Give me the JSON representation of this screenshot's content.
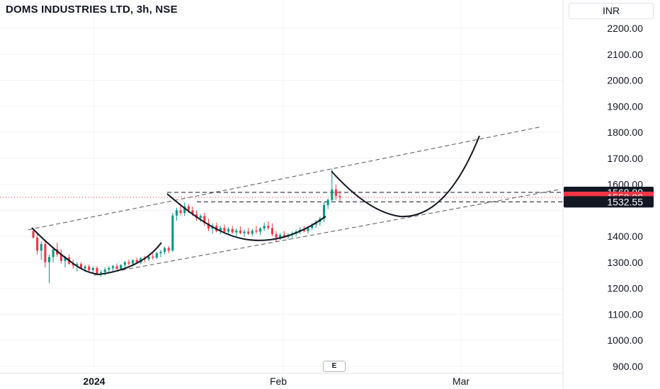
{
  "header": {
    "title": "DOMS INDUSTRIES LTD, 3h, NSE",
    "currency": "INR"
  },
  "toolbar": {
    "scale_button": "E"
  },
  "chart_data": {
    "type": "candlestick",
    "title": "DOMS INDUSTRIES LTD, 3h, NSE",
    "ylim": [
      880,
      2260
    ],
    "y_ticks": [
      "2200.00",
      "2100.00",
      "2000.00",
      "1900.00",
      "1800.00",
      "1700.00",
      "1600.00",
      "1400.00",
      "1300.00",
      "1200.00",
      "1100.00",
      "1000.00",
      "900.00"
    ],
    "x_ticks": [
      "2024",
      "Feb",
      "Mar"
    ],
    "price_labels": [
      {
        "value": "1568.80",
        "style": "dark"
      },
      {
        "value": "1550.00",
        "style": "red"
      },
      {
        "value": "1532.55",
        "style": "dark"
      }
    ],
    "grid": true,
    "candles": [
      [
        1420,
        1430,
        1390,
        1395
      ],
      [
        1395,
        1410,
        1330,
        1345
      ],
      [
        1345,
        1380,
        1310,
        1370
      ],
      [
        1370,
        1380,
        1280,
        1300
      ],
      [
        1300,
        1330,
        1220,
        1320
      ],
      [
        1320,
        1360,
        1300,
        1350
      ],
      [
        1350,
        1375,
        1320,
        1330
      ],
      [
        1330,
        1350,
        1295,
        1305
      ],
      [
        1305,
        1325,
        1280,
        1318
      ],
      [
        1318,
        1330,
        1290,
        1295
      ],
      [
        1295,
        1310,
        1275,
        1288
      ],
      [
        1288,
        1300,
        1265,
        1293
      ],
      [
        1293,
        1300,
        1272,
        1276
      ],
      [
        1276,
        1290,
        1262,
        1284
      ],
      [
        1284,
        1292,
        1265,
        1270
      ],
      [
        1270,
        1285,
        1258,
        1278
      ],
      [
        1278,
        1285,
        1252,
        1258
      ],
      [
        1258,
        1270,
        1245,
        1262
      ],
      [
        1262,
        1280,
        1250,
        1272
      ],
      [
        1272,
        1285,
        1262,
        1278
      ],
      [
        1278,
        1290,
        1265,
        1285
      ],
      [
        1285,
        1295,
        1270,
        1275
      ],
      [
        1275,
        1292,
        1268,
        1290
      ],
      [
        1290,
        1305,
        1280,
        1300
      ],
      [
        1300,
        1310,
        1288,
        1295
      ],
      [
        1295,
        1312,
        1285,
        1308
      ],
      [
        1308,
        1318,
        1295,
        1300
      ],
      [
        1300,
        1320,
        1292,
        1315
      ],
      [
        1315,
        1325,
        1300,
        1312
      ],
      [
        1312,
        1328,
        1305,
        1322
      ],
      [
        1322,
        1335,
        1310,
        1318
      ],
      [
        1318,
        1340,
        1312,
        1335
      ],
      [
        1335,
        1348,
        1320,
        1340
      ],
      [
        1340,
        1360,
        1330,
        1355
      ],
      [
        1355,
        1362,
        1335,
        1345
      ],
      [
        1345,
        1490,
        1340,
        1480
      ],
      [
        1480,
        1510,
        1460,
        1500
      ],
      [
        1500,
        1525,
        1480,
        1490
      ],
      [
        1490,
        1530,
        1478,
        1515
      ],
      [
        1515,
        1525,
        1490,
        1500
      ],
      [
        1500,
        1515,
        1478,
        1485
      ],
      [
        1485,
        1500,
        1460,
        1470
      ],
      [
        1470,
        1485,
        1455,
        1478
      ],
      [
        1478,
        1490,
        1440,
        1450
      ],
      [
        1450,
        1468,
        1420,
        1430
      ],
      [
        1430,
        1450,
        1410,
        1440
      ],
      [
        1440,
        1452,
        1415,
        1420
      ],
      [
        1420,
        1440,
        1408,
        1432
      ],
      [
        1432,
        1445,
        1412,
        1418
      ],
      [
        1418,
        1435,
        1405,
        1428
      ],
      [
        1428,
        1440,
        1410,
        1415
      ],
      [
        1415,
        1430,
        1400,
        1422
      ],
      [
        1422,
        1438,
        1408,
        1412
      ],
      [
        1412,
        1426,
        1398,
        1418
      ],
      [
        1418,
        1432,
        1405,
        1410
      ],
      [
        1410,
        1428,
        1400,
        1422
      ],
      [
        1422,
        1440,
        1410,
        1418
      ],
      [
        1418,
        1435,
        1405,
        1430
      ],
      [
        1430,
        1452,
        1420,
        1440
      ],
      [
        1440,
        1458,
        1425,
        1432
      ],
      [
        1432,
        1450,
        1400,
        1408
      ],
      [
        1408,
        1420,
        1380,
        1395
      ],
      [
        1395,
        1412,
        1385,
        1405
      ],
      [
        1405,
        1420,
        1392,
        1398
      ],
      [
        1398,
        1412,
        1388,
        1405
      ],
      [
        1405,
        1418,
        1395,
        1410
      ],
      [
        1410,
        1425,
        1400,
        1418
      ],
      [
        1418,
        1435,
        1408,
        1425
      ],
      [
        1425,
        1440,
        1415,
        1420
      ],
      [
        1420,
        1438,
        1410,
        1432
      ],
      [
        1432,
        1450,
        1425,
        1445
      ],
      [
        1445,
        1462,
        1432,
        1455
      ],
      [
        1455,
        1475,
        1440,
        1468
      ],
      [
        1468,
        1530,
        1455,
        1520
      ],
      [
        1520,
        1545,
        1505,
        1540
      ],
      [
        1540,
        1660,
        1530,
        1580
      ],
      [
        1580,
        1600,
        1540,
        1555
      ],
      [
        1555,
        1575,
        1535,
        1550
      ]
    ],
    "annotations": [
      "upper channel line",
      "lower channel line",
      "cup arc 1",
      "cup arc 2",
      "projected cup arc"
    ]
  }
}
